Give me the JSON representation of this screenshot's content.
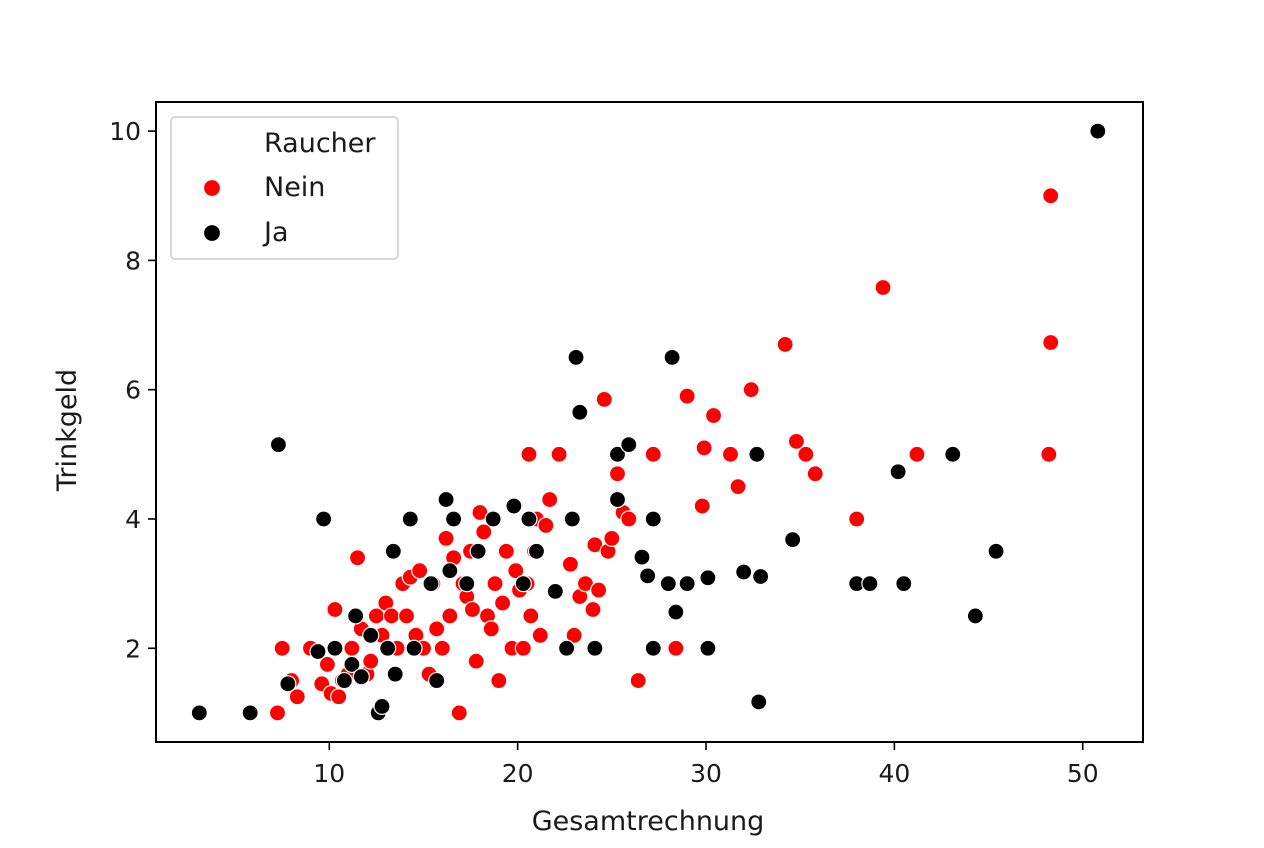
{
  "chart_data": {
    "type": "scatter",
    "title": "",
    "xlabel": "Gesamtrechnung",
    "ylabel": "Trinkgeld",
    "xlim": [
      0.8,
      53.2
    ],
    "ylim": [
      0.55,
      10.45
    ],
    "xticks": [
      10,
      20,
      30,
      40,
      50
    ],
    "yticks": [
      2,
      4,
      6,
      8,
      10
    ],
    "grid": false,
    "legend": {
      "title": "Raucher",
      "placement": "top-left",
      "entries": [
        {
          "label": "Nein",
          "color": "#ff0000"
        },
        {
          "label": "Ja",
          "color": "#000000"
        }
      ]
    },
    "series": [
      {
        "name": "Nein",
        "color": "#ff0000",
        "points": [
          [
            7.25,
            1.0
          ],
          [
            7.5,
            2.0
          ],
          [
            8.0,
            1.5
          ],
          [
            8.3,
            1.25
          ],
          [
            9.0,
            2.0
          ],
          [
            9.6,
            1.45
          ],
          [
            9.9,
            1.75
          ],
          [
            10.1,
            1.3
          ],
          [
            10.3,
            2.6
          ],
          [
            10.5,
            1.25
          ],
          [
            10.7,
            1.5
          ],
          [
            11.0,
            1.6
          ],
          [
            11.2,
            2.0
          ],
          [
            11.5,
            3.4
          ],
          [
            11.7,
            2.3
          ],
          [
            12.0,
            1.6
          ],
          [
            12.2,
            1.8
          ],
          [
            12.5,
            2.5
          ],
          [
            12.8,
            2.2
          ],
          [
            13.0,
            2.7
          ],
          [
            13.3,
            2.5
          ],
          [
            13.6,
            2.0
          ],
          [
            13.9,
            3.0
          ],
          [
            14.1,
            2.5
          ],
          [
            14.3,
            3.1
          ],
          [
            14.6,
            2.2
          ],
          [
            14.8,
            3.2
          ],
          [
            15.0,
            2.0
          ],
          [
            15.3,
            1.6
          ],
          [
            15.5,
            3.0
          ],
          [
            15.7,
            2.3
          ],
          [
            16.0,
            2.0
          ],
          [
            16.2,
            3.7
          ],
          [
            16.4,
            2.5
          ],
          [
            16.6,
            3.4
          ],
          [
            16.9,
            1.0
          ],
          [
            17.1,
            3.0
          ],
          [
            17.3,
            2.8
          ],
          [
            17.5,
            3.5
          ],
          [
            17.6,
            2.6
          ],
          [
            17.8,
            1.8
          ],
          [
            18.0,
            4.1
          ],
          [
            18.2,
            3.8
          ],
          [
            18.4,
            2.5
          ],
          [
            18.6,
            2.3
          ],
          [
            18.8,
            3.0
          ],
          [
            19.0,
            1.5
          ],
          [
            19.2,
            2.7
          ],
          [
            19.4,
            3.5
          ],
          [
            19.7,
            2.0
          ],
          [
            19.9,
            3.2
          ],
          [
            20.1,
            2.9
          ],
          [
            20.3,
            2.0
          ],
          [
            20.5,
            3.0
          ],
          [
            20.6,
            5.0
          ],
          [
            20.7,
            2.5
          ],
          [
            20.9,
            3.5
          ],
          [
            21.0,
            4.0
          ],
          [
            21.2,
            2.2
          ],
          [
            21.5,
            3.9
          ],
          [
            21.7,
            4.3
          ],
          [
            22.2,
            5.0
          ],
          [
            22.8,
            3.3
          ],
          [
            23.0,
            2.2
          ],
          [
            23.3,
            2.8
          ],
          [
            23.6,
            3.0
          ],
          [
            24.0,
            2.6
          ],
          [
            24.1,
            3.6
          ],
          [
            24.3,
            2.9
          ],
          [
            24.6,
            5.85
          ],
          [
            24.8,
            3.5
          ],
          [
            25.0,
            3.7
          ],
          [
            25.3,
            4.7
          ],
          [
            25.6,
            4.1
          ],
          [
            25.9,
            4.0
          ],
          [
            26.4,
            1.5
          ],
          [
            27.2,
            5.0
          ],
          [
            28.4,
            2.0
          ],
          [
            29.0,
            5.9
          ],
          [
            29.8,
            4.2
          ],
          [
            29.9,
            5.1
          ],
          [
            30.4,
            5.6
          ],
          [
            31.3,
            5.0
          ],
          [
            31.7,
            4.5
          ],
          [
            32.4,
            6.0
          ],
          [
            34.2,
            6.7
          ],
          [
            34.8,
            5.2
          ],
          [
            35.3,
            5.0
          ],
          [
            35.8,
            4.7
          ],
          [
            38.0,
            4.0
          ],
          [
            39.4,
            7.58
          ],
          [
            41.2,
            5.0
          ],
          [
            48.2,
            5.0
          ],
          [
            48.3,
            6.73
          ],
          [
            48.3,
            9.0
          ]
        ]
      },
      {
        "name": "Ja",
        "color": "#000000",
        "points": [
          [
            3.1,
            1.0
          ],
          [
            5.8,
            1.0
          ],
          [
            7.3,
            5.15
          ],
          [
            7.8,
            1.45
          ],
          [
            9.4,
            1.95
          ],
          [
            9.7,
            4.0
          ],
          [
            10.3,
            2.0
          ],
          [
            10.8,
            1.5
          ],
          [
            11.2,
            1.75
          ],
          [
            11.4,
            2.5
          ],
          [
            11.7,
            1.56
          ],
          [
            12.2,
            2.2
          ],
          [
            12.6,
            1.0
          ],
          [
            12.8,
            1.1
          ],
          [
            13.1,
            2.0
          ],
          [
            13.4,
            3.5
          ],
          [
            13.5,
            1.6
          ],
          [
            14.3,
            4.0
          ],
          [
            14.5,
            2.0
          ],
          [
            15.4,
            3.0
          ],
          [
            15.7,
            1.5
          ],
          [
            16.2,
            4.3
          ],
          [
            16.4,
            3.2
          ],
          [
            16.6,
            4.0
          ],
          [
            17.3,
            3.0
          ],
          [
            17.9,
            3.5
          ],
          [
            18.7,
            4.0
          ],
          [
            19.8,
            4.2
          ],
          [
            20.3,
            3.0
          ],
          [
            20.6,
            4.0
          ],
          [
            21.0,
            3.5
          ],
          [
            22.0,
            2.88
          ],
          [
            22.6,
            2.0
          ],
          [
            22.9,
            4.0
          ],
          [
            23.1,
            6.5
          ],
          [
            23.3,
            5.65
          ],
          [
            24.1,
            2.0
          ],
          [
            25.3,
            5.0
          ],
          [
            25.3,
            4.3
          ],
          [
            25.9,
            5.15
          ],
          [
            26.6,
            3.41
          ],
          [
            26.9,
            3.12
          ],
          [
            27.2,
            4.0
          ],
          [
            27.2,
            2.0
          ],
          [
            28.0,
            3.0
          ],
          [
            28.2,
            6.5
          ],
          [
            28.4,
            2.56
          ],
          [
            29.0,
            3.0
          ],
          [
            30.1,
            2.0
          ],
          [
            30.1,
            3.09
          ],
          [
            32.0,
            3.18
          ],
          [
            32.7,
            5.0
          ],
          [
            32.8,
            1.17
          ],
          [
            32.9,
            3.11
          ],
          [
            34.6,
            3.68
          ],
          [
            38.0,
            3.0
          ],
          [
            38.7,
            3.0
          ],
          [
            40.2,
            4.73
          ],
          [
            40.5,
            3.0
          ],
          [
            43.1,
            5.0
          ],
          [
            44.3,
            2.5
          ],
          [
            45.4,
            3.5
          ],
          [
            50.8,
            10.0
          ]
        ]
      }
    ]
  }
}
